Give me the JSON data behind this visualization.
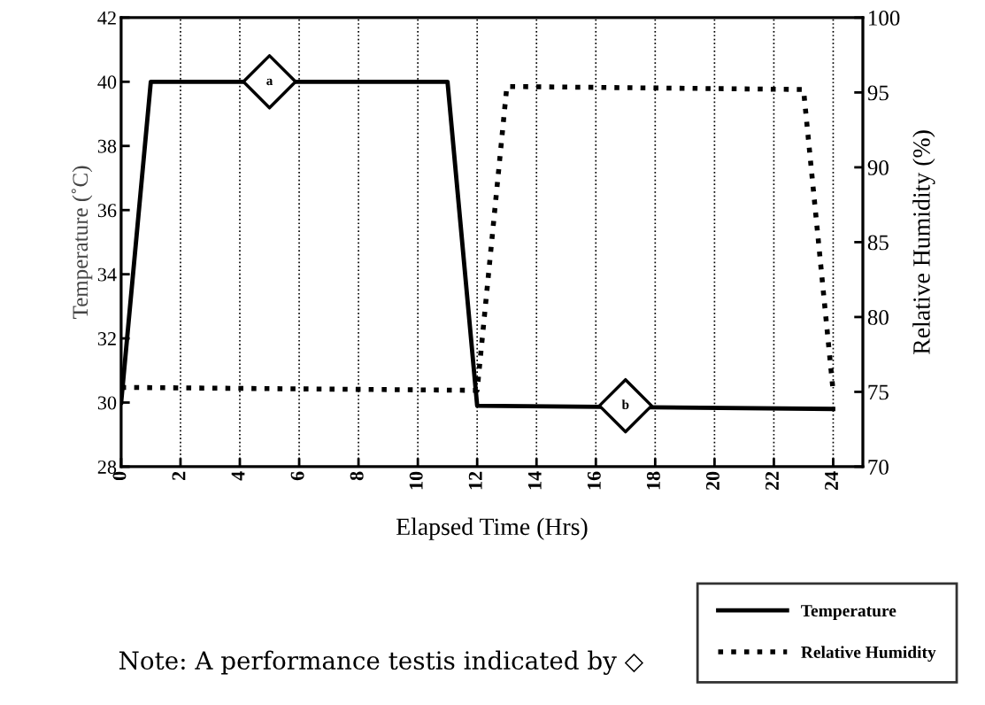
{
  "chart_data": {
    "type": "line",
    "xlabel": "Elapsed Time (Hrs)",
    "ylabel": "Temperature (˚C)",
    "y2label": "Relative Humidity (%)",
    "xlim": [
      0,
      25
    ],
    "xticks": [
      0,
      2,
      4,
      6,
      8,
      10,
      12,
      14,
      16,
      18,
      20,
      22,
      24
    ],
    "ylim": [
      28,
      42
    ],
    "yticks": [
      28,
      30,
      32,
      34,
      36,
      38,
      40,
      42
    ],
    "y2lim": [
      70,
      100
    ],
    "y2ticks": [
      70,
      75,
      80,
      85,
      90,
      95,
      100
    ],
    "grid": "x",
    "legend": "bottom right",
    "series": [
      {
        "name": "Temperature",
        "color": "#000000",
        "line_style": "solid",
        "x": [
          0,
          1,
          11,
          12,
          24
        ],
        "values": [
          30,
          40,
          40,
          29.9,
          29.8
        ]
      },
      {
        "name": "Relative Humidity",
        "color": "#000000",
        "line_style": "dotted",
        "axis": "y2",
        "x": [
          0,
          12,
          13,
          23,
          24
        ],
        "values": [
          75.3,
          75.1,
          95.4,
          95.2,
          75
        ]
      },
      {
        "type": "scatter",
        "color": "#000000",
        "marker": "diamond",
        "x": [
          5,
          17
        ],
        "values": [
          40,
          29.9
        ]
      }
    ],
    "annotations": [
      {
        "text": "a",
        "x": 5,
        "y": 40
      },
      {
        "text": "b",
        "x": 17,
        "y": 29.9
      },
      "Note: A performance testis indicated by ◇"
    ]
  }
}
